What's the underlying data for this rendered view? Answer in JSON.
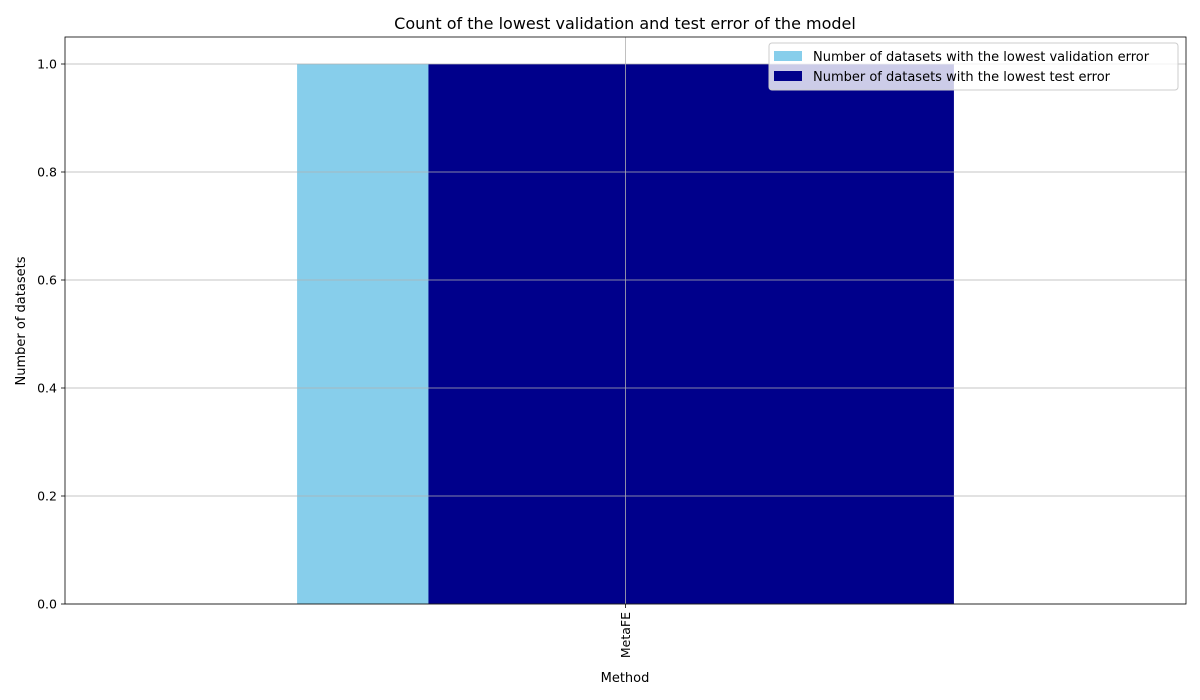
{
  "chart_data": {
    "type": "bar",
    "title": "Count of the lowest validation and test error of the model",
    "xlabel": "Method",
    "ylabel": "Number of datasets",
    "categories": [
      "MetaFE"
    ],
    "series": [
      {
        "name": "Number of datasets with the lowest validation error",
        "values": [
          1.0
        ],
        "color": "#87ceeb"
      },
      {
        "name": "Number of datasets with the lowest test error",
        "values": [
          1.0
        ],
        "color": "#00008b"
      }
    ],
    "ylim": [
      0,
      1.05
    ],
    "yticks": [
      "0.0",
      "0.2",
      "0.4",
      "0.6",
      "0.8",
      "1.0"
    ],
    "ytick_values": [
      0,
      0.2,
      0.4,
      0.6,
      0.8,
      1.0
    ],
    "grid": true,
    "legend_position": "top-right"
  }
}
